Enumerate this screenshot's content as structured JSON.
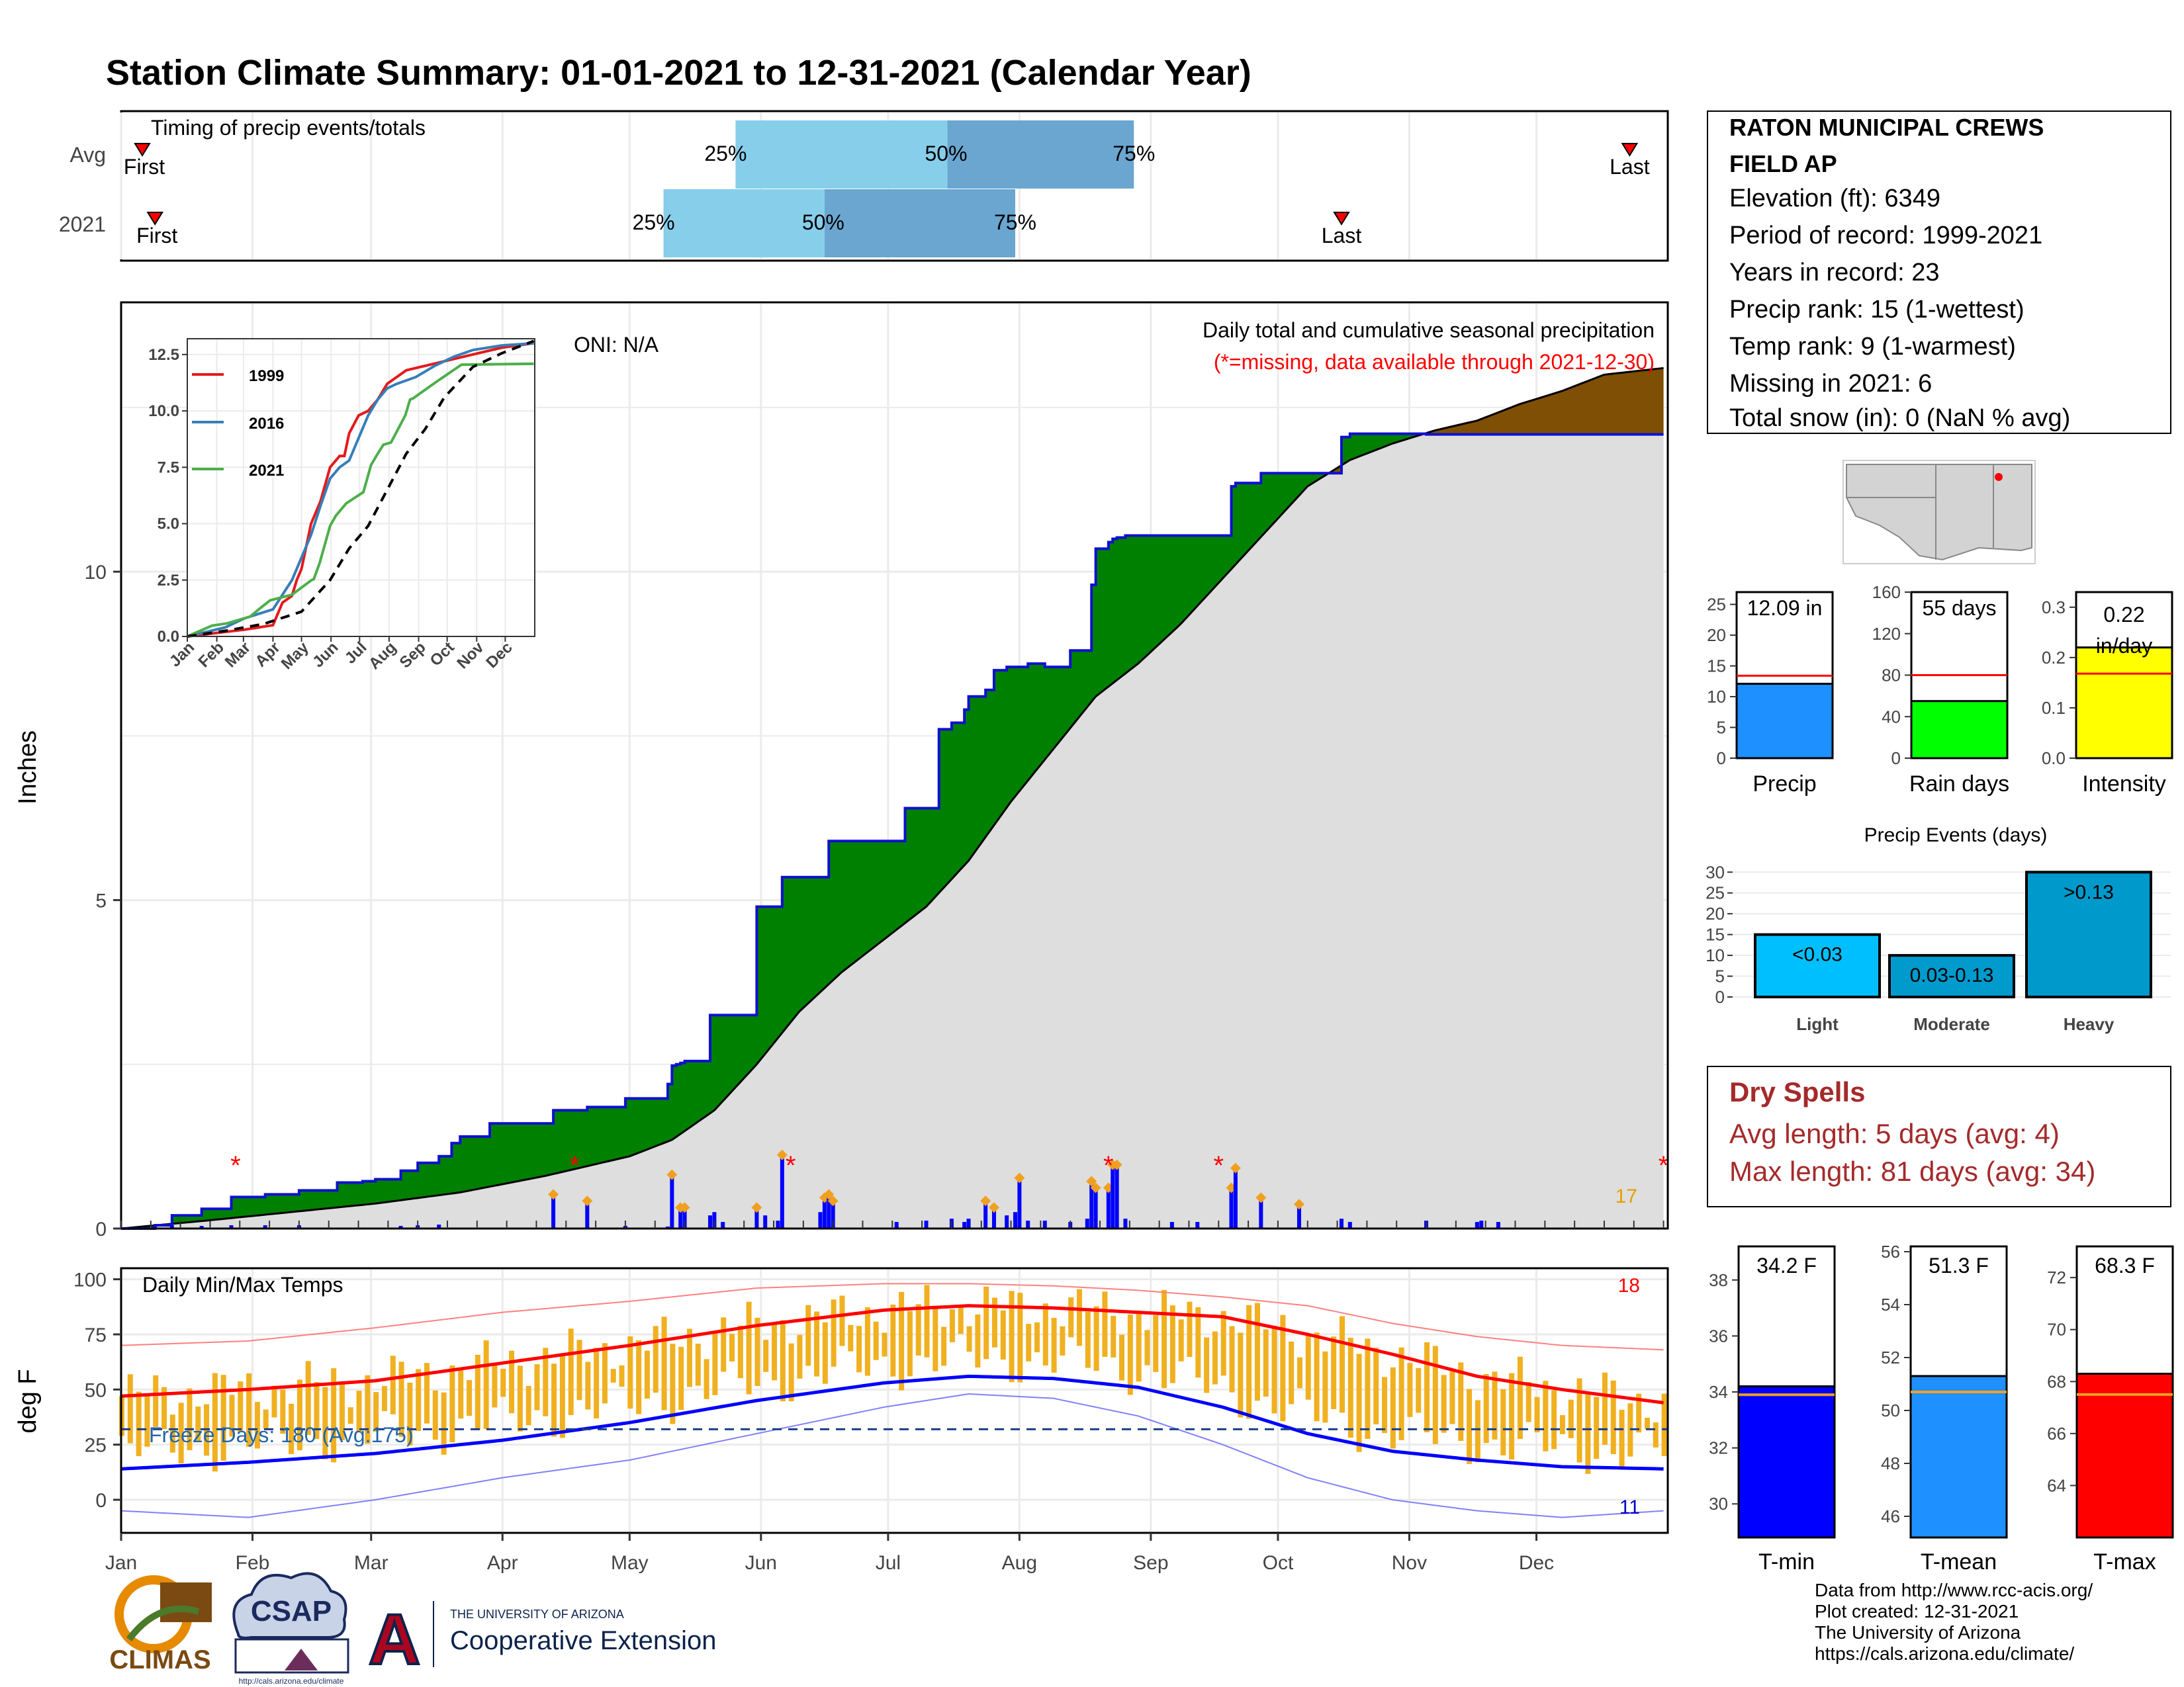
{
  "title": "Station Climate Summary: 01-01-2021 to 12-31-2021 (Calendar Year)",
  "colors": {
    "title": "#0a0a8c",
    "green": "#008000",
    "brown": "#7f4f05",
    "gray": "#dedede",
    "blue_line": "#1010d0",
    "bars": "#0000ff",
    "orange": "#f0b020",
    "red": "#ff0000",
    "light_blue": "#87ceeb",
    "mid_blue": "#6aa6d0",
    "dry_red": "#a52a2a"
  },
  "timing": {
    "caption": "Timing of precip events/totals",
    "rows": [
      {
        "label": "Avg",
        "first_day": 5,
        "last_day": 356,
        "q25_day": 145,
        "q50_day": 195,
        "q75_day": 239,
        "first": "First",
        "last": "Last",
        "p25": "25%",
        "p50": "50%",
        "p75": "75%"
      },
      {
        "label": "2021",
        "first_day": 8,
        "last_day": 288,
        "q25_day": 128,
        "q50_day": 166,
        "q75_day": 211,
        "first": "First",
        "last": "Last",
        "p25": "25%",
        "p50": "50%",
        "p75": "75%"
      }
    ]
  },
  "precip_panel": {
    "ylabel": "Inches",
    "title": "Daily total and cumulative seasonal precipitation",
    "missing_note": "(*=missing, data available through 2021-12-30)",
    "oni": "ONI: N/A",
    "count_label": "17",
    "missing_days": [
      27,
      107,
      158,
      233,
      259,
      364
    ]
  },
  "inset": {
    "yticks": [
      "0.0",
      "2.5",
      "5.0",
      "7.5",
      "10.0",
      "12.5"
    ],
    "months": [
      "Jan",
      "Feb",
      "Mar",
      "Apr",
      "May",
      "Jun",
      "Jul",
      "Aug",
      "Sep",
      "Oct",
      "Nov",
      "Dec"
    ],
    "legend": [
      {
        "name": "1999",
        "color": "#e41a1c"
      },
      {
        "name": "2016",
        "color": "#377eb8"
      },
      {
        "name": "2021",
        "color": "#4daf4a"
      }
    ]
  },
  "temp_panel": {
    "ylabel": "deg F",
    "caption": "Daily Min/Max Temps",
    "freeze": "Freeze Days: 180 (Avg:175)",
    "max_count": "18",
    "min_count": "11"
  },
  "months": [
    "Jan",
    "Feb",
    "Mar",
    "Apr",
    "May",
    "Jun",
    "Jul",
    "Aug",
    "Sep",
    "Oct",
    "Nov",
    "Dec"
  ],
  "station": {
    "name1": "RATON MUNICIPAL CREWS",
    "name2": "FIELD AP",
    "lines": [
      "Elevation (ft): 6349",
      "Period of record: 1999-2021",
      "Years in record: 23",
      "Precip rank: 15 (1-wettest)",
      "Temp rank: 9 (1-warmest)",
      "Missing in 2021: 6",
      "Total snow (in): 0 (NaN % avg)"
    ]
  },
  "summary_bars": [
    {
      "label": "Precip",
      "value": 12.09,
      "avg": 13.4,
      "ymax": 27,
      "ticks": [
        "0",
        "5",
        "10",
        "15",
        "20",
        "25"
      ],
      "tickvals": [
        0,
        5,
        10,
        15,
        20,
        25
      ],
      "text": "12.09 in",
      "color": "#1e90ff"
    },
    {
      "label": "Rain days",
      "value": 55,
      "avg": 80,
      "ymax": 160,
      "ticks": [
        "0",
        "40",
        "80",
        "120",
        "160"
      ],
      "tickvals": [
        0,
        40,
        80,
        120,
        160
      ],
      "text": "55 days",
      "color": "#00ff00"
    },
    {
      "label": "Intensity",
      "value": 0.22,
      "avg": 0.168,
      "ymax": 0.33,
      "ticks": [
        "0.0",
        "0.1",
        "0.2",
        "0.3"
      ],
      "tickvals": [
        0,
        0.1,
        0.2,
        0.3
      ],
      "text": "0.22",
      "text2": "in/day",
      "color": "#ffff00"
    }
  ],
  "events": {
    "title": "Precip Events (days)",
    "ticks": [
      "0",
      "5",
      "10",
      "15",
      "20",
      "25",
      "30"
    ],
    "bars": [
      {
        "label": "Light",
        "value": 15,
        "text": "<0.03",
        "color": "#00bfff"
      },
      {
        "label": "Moderate",
        "value": 10,
        "text": "0.03-0.13",
        "color": "#009acd"
      },
      {
        "label": "Heavy",
        "value": 30,
        "text": ">0.13",
        "color": "#0099cc"
      }
    ]
  },
  "dry": {
    "title": "Dry Spells",
    "avg": "Avg length: 5 days (avg: 4)",
    "max": "Max length: 81 days (avg: 34)"
  },
  "temp_bars": [
    {
      "label": "T-min",
      "value": 34.2,
      "avg": 33.9,
      "min": 28.8,
      "max": 39.2,
      "ticks": [
        30,
        32,
        34,
        36,
        38
      ],
      "text": "34.2 F",
      "color": "#0000ff"
    },
    {
      "label": "T-mean",
      "value": 51.3,
      "avg": 50.7,
      "min": 45.2,
      "max": 56.2,
      "ticks": [
        46,
        48,
        50,
        52,
        54,
        56
      ],
      "text": "51.3 F",
      "color": "#1e90ff"
    },
    {
      "label": "T-max",
      "value": 68.3,
      "avg": 67.5,
      "min": 62.0,
      "max": 73.2,
      "ticks": [
        64,
        66,
        68,
        70,
        72
      ],
      "text": "68.3 F",
      "color": "#ff0000"
    }
  ],
  "footer": {
    "lines": [
      "Data from http://www.rcc-acis.org/",
      "Plot created: 12-31-2021",
      "The University of Arizona",
      "https://cals.arizona.edu/climate/"
    ],
    "logo_climas": "CLIMAS",
    "logo_csap": "CSAP",
    "csap_url": "http://cals.arizona.edu/climate",
    "ua_letter": "A",
    "ua_line1": "THE UNIVERSITY OF ARIZONA",
    "ua_line2": "Cooperative Extension"
  },
  "chart_data": {
    "type": "area",
    "title": "Daily total and cumulative seasonal precipitation",
    "ylabel": "Inches",
    "ylim": [
      0,
      14
    ],
    "x_unit": "day of year 2021",
    "series": [
      {
        "name": "2021",
        "x": [
          0,
          8,
          12,
          19,
          26,
          34,
          42,
          51,
          57,
          60,
          66,
          70,
          75,
          78,
          80,
          87,
          96,
          102,
          110,
          119,
          129,
          130,
          131,
          132,
          133,
          139,
          150,
          156,
          167,
          180,
          185,
          190,
          193,
          196,
          199,
          200,
          204,
          206,
          209,
          211,
          214,
          218,
          224,
          229,
          230,
          233,
          234,
          235,
          237,
          248,
          262,
          263,
          269,
          278,
          288,
          290,
          300,
          308,
          364
        ],
        "y": [
          0,
          0.05,
          0.2,
          0.3,
          0.48,
          0.52,
          0.58,
          0.7,
          0.72,
          0.75,
          0.88,
          1,
          1.1,
          1.3,
          1.4,
          1.6,
          1.6,
          1.8,
          1.85,
          1.98,
          2.2,
          2.48,
          2.5,
          2.52,
          2.55,
          3.25,
          4.9,
          5.35,
          5.9,
          5.9,
          6.4,
          6.4,
          7.6,
          7.7,
          7.9,
          8.1,
          8.2,
          8.5,
          8.55,
          8.55,
          8.6,
          8.55,
          8.8,
          9.8,
          10.35,
          10.45,
          10.5,
          10.52,
          10.55,
          10.55,
          11.3,
          11.35,
          11.5,
          11.5,
          12.05,
          12.1,
          12.1,
          12.09,
          12.09
        ]
      },
      {
        "name": "",
        "x": [
          0,
          20,
          40,
          60,
          80,
          100,
          120,
          130,
          140,
          150,
          160,
          170,
          180,
          190,
          200,
          210,
          220,
          230,
          240,
          250,
          260,
          270,
          280,
          290,
          300,
          310,
          320,
          330,
          340,
          350,
          364
        ],
        "y": [
          0,
          0.12,
          0.25,
          0.38,
          0.55,
          0.8,
          1.1,
          1.35,
          1.8,
          2.5,
          3.3,
          3.9,
          4.4,
          4.9,
          5.6,
          6.5,
          7.3,
          8.1,
          8.6,
          9.2,
          9.9,
          10.6,
          11.3,
          11.7,
          11.95,
          12.15,
          12.3,
          12.55,
          12.75,
          13.0,
          13.1
        ]
      }
    ],
    "daily_precip": [
      [
        8,
        0.03
      ],
      [
        12,
        0.05
      ],
      [
        19,
        0.04
      ],
      [
        26,
        0.05
      ],
      [
        34,
        0.05
      ],
      [
        42,
        0.05
      ],
      [
        66,
        0.04
      ],
      [
        70,
        0.05
      ],
      [
        75,
        0.06
      ],
      [
        102,
        0.5
      ],
      [
        110,
        0.4
      ],
      [
        119,
        0.04
      ],
      [
        129,
        0.03
      ],
      [
        130,
        0.8
      ],
      [
        132,
        0.3
      ],
      [
        133,
        0.3
      ],
      [
        139,
        0.2
      ],
      [
        140,
        0.25
      ],
      [
        142,
        0.1
      ],
      [
        150,
        0.3
      ],
      [
        152,
        0.2
      ],
      [
        155,
        0.12
      ],
      [
        156,
        1.1
      ],
      [
        165,
        0.25
      ],
      [
        166,
        0.45
      ],
      [
        167,
        0.5
      ],
      [
        168,
        0.4
      ],
      [
        183,
        0.1
      ],
      [
        190,
        0.12
      ],
      [
        196,
        0.15
      ],
      [
        199,
        0.1
      ],
      [
        200,
        0.15
      ],
      [
        204,
        0.4
      ],
      [
        206,
        0.3
      ],
      [
        209,
        0.2
      ],
      [
        211,
        0.25
      ],
      [
        212,
        0.75
      ],
      [
        214,
        0.12
      ],
      [
        218,
        0.12
      ],
      [
        224,
        0.1
      ],
      [
        228,
        0.15
      ],
      [
        229,
        0.7
      ],
      [
        230,
        0.6
      ],
      [
        233,
        0.6
      ],
      [
        234,
        0.95
      ],
      [
        235,
        0.95
      ],
      [
        237,
        0.15
      ],
      [
        248,
        0.1
      ],
      [
        254,
        0.1
      ],
      [
        262,
        0.6
      ],
      [
        263,
        0.9
      ],
      [
        269,
        0.45
      ],
      [
        278,
        0.35
      ],
      [
        288,
        0.15
      ],
      [
        290,
        0.1
      ],
      [
        308,
        0.12
      ],
      [
        320,
        0.1
      ],
      [
        321,
        0.12
      ],
      [
        325,
        0.1
      ]
    ],
    "insets": {
      "type": "line",
      "ylim": [
        0,
        13.2
      ],
      "yticks": [
        0,
        2.5,
        5,
        7.5,
        10,
        12.5
      ],
      "series": [
        {
          "name": "1999",
          "color": "#e41a1c",
          "x": [
            0,
            20,
            40,
            60,
            90,
            100,
            110,
            115,
            120,
            130,
            140,
            150,
            160,
            165,
            170,
            180,
            190,
            200,
            210,
            230,
            250,
            270,
            300,
            330,
            364
          ],
          "y": [
            0,
            0.1,
            0.2,
            0.3,
            0.5,
            1.5,
            1.8,
            2.5,
            3.0,
            5.0,
            6.0,
            7.5,
            8.0,
            8.0,
            9.0,
            9.8,
            10.0,
            10.5,
            11.2,
            11.8,
            12.0,
            12.2,
            12.5,
            12.8,
            13.0
          ]
        },
        {
          "name": "2016",
          "color": "#377eb8",
          "x": [
            0,
            20,
            40,
            60,
            90,
            110,
            120,
            130,
            140,
            150,
            160,
            170,
            180,
            190,
            200,
            210,
            220,
            240,
            260,
            280,
            300,
            330,
            364
          ],
          "y": [
            0,
            0.2,
            0.4,
            0.8,
            1.2,
            2.5,
            3.5,
            4.5,
            5.8,
            7.0,
            7.5,
            7.8,
            8.8,
            9.8,
            10.5,
            11.0,
            11.2,
            11.5,
            12.0,
            12.4,
            12.7,
            12.9,
            13.0
          ]
        },
        {
          "name": "2021",
          "color": "#4daf4a",
          "x": [
            0,
            26,
            42,
            66,
            78,
            87,
            110,
            130,
            133,
            139,
            150,
            156,
            167,
            185,
            193,
            200,
            206,
            214,
            229,
            234,
            237,
            262,
            269,
            288,
            364
          ],
          "y": [
            0,
            0.48,
            0.58,
            0.88,
            1.3,
            1.6,
            1.85,
            2.48,
            2.55,
            3.25,
            4.9,
            5.35,
            5.9,
            6.4,
            7.6,
            8.1,
            8.5,
            8.6,
            9.8,
            10.5,
            10.55,
            11.3,
            11.5,
            12.05,
            12.09
          ]
        },
        {
          "name": "",
          "color": "#000000",
          "x": [
            0,
            40,
            80,
            120,
            150,
            170,
            190,
            210,
            230,
            250,
            270,
            300,
            330,
            364
          ],
          "y": [
            0,
            0.25,
            0.55,
            1.1,
            2.5,
            3.9,
            4.9,
            6.5,
            8.1,
            9.2,
            10.6,
            11.95,
            12.55,
            13.1
          ]
        }
      ]
    },
    "temperature": {
      "type": "line",
      "ylim": [
        -15,
        105
      ],
      "yticks": [
        0,
        25,
        50,
        75,
        100
      ],
      "normal_max": {
        "x": [
          0,
          30,
          60,
          90,
          120,
          150,
          180,
          200,
          220,
          240,
          260,
          280,
          300,
          320,
          340,
          364
        ],
        "y": [
          47,
          50,
          54,
          62,
          70,
          79,
          86,
          88,
          87,
          85,
          83,
          75,
          66,
          56,
          50,
          44
        ]
      },
      "normal_min": {
        "x": [
          0,
          30,
          60,
          90,
          120,
          150,
          180,
          200,
          220,
          240,
          260,
          280,
          300,
          320,
          340,
          364
        ],
        "y": [
          14,
          17,
          21,
          27,
          35,
          45,
          53,
          56,
          55,
          51,
          42,
          30,
          22,
          18,
          15,
          14
        ]
      },
      "record_high": {
        "x": [
          0,
          30,
          60,
          90,
          120,
          150,
          180,
          200,
          220,
          240,
          260,
          280,
          300,
          320,
          340,
          364
        ],
        "y": [
          70,
          72,
          78,
          85,
          90,
          96,
          98,
          98,
          97,
          95,
          92,
          88,
          80,
          74,
          70,
          68
        ]
      },
      "record_low": {
        "x": [
          0,
          30,
          60,
          90,
          120,
          150,
          180,
          200,
          220,
          240,
          260,
          280,
          300,
          320,
          340,
          364
        ],
        "y": [
          -5,
          -8,
          0,
          10,
          18,
          30,
          42,
          48,
          46,
          38,
          25,
          10,
          0,
          -5,
          -8,
          -5
        ]
      },
      "freeze_threshold": 32
    }
  }
}
